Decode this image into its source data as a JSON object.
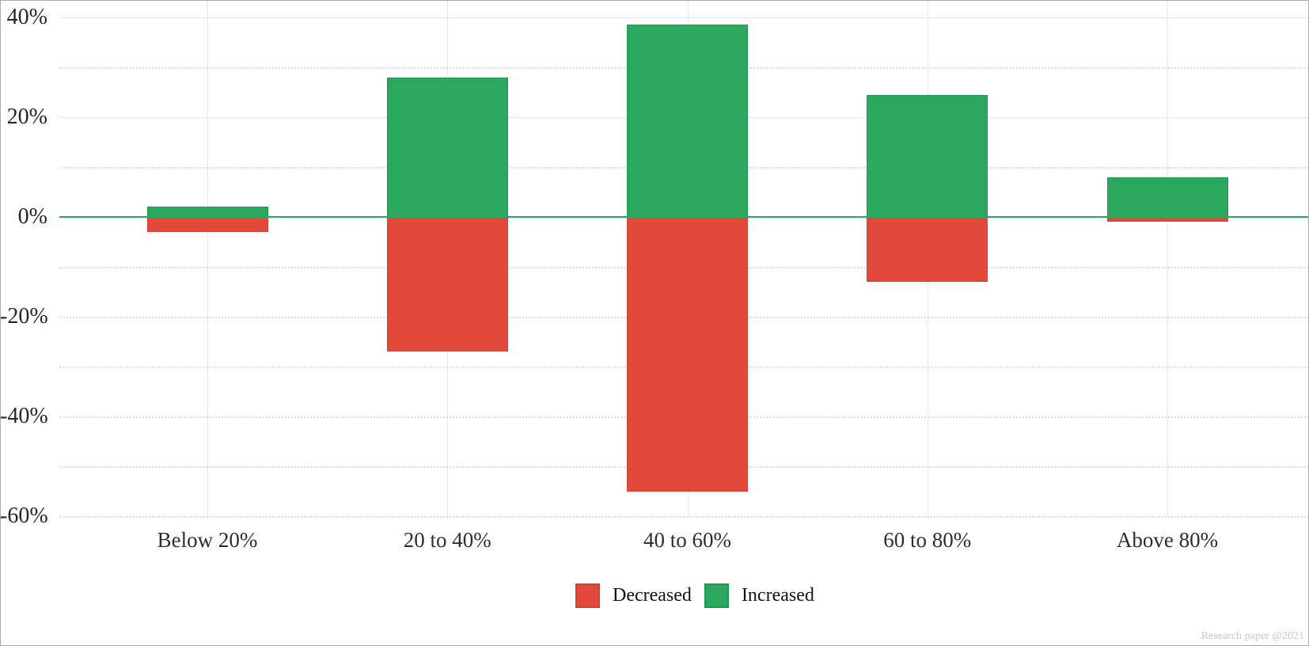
{
  "chart_data": {
    "type": "bar",
    "variant": "diverging-stacked",
    "title": "",
    "xlabel": "",
    "ylabel": "",
    "categories": [
      "Below 20%",
      "20 to 40%",
      "40 to 60%",
      "60 to 80%",
      "Above 80%"
    ],
    "series": [
      {
        "name": "Decreased",
        "color": "#e3493a",
        "border_color": "#d24234",
        "values": [
          -3,
          -27,
          -55,
          -13,
          -1
        ]
      },
      {
        "name": "Increased",
        "color": "#2aa85f",
        "border_color": "#219653",
        "values": [
          2,
          28,
          38.5,
          24.5,
          8
        ]
      }
    ],
    "ylim": [
      -60,
      44
    ],
    "yticks": {
      "labeled": [
        40,
        20,
        0,
        -20,
        -40,
        -60
      ],
      "labels": [
        "40%",
        "20%",
        "0%",
        "-20%",
        "-40%",
        "-60%"
      ],
      "minor": [
        30,
        10,
        -10,
        -30,
        -50
      ],
      "solid": [
        40,
        20
      ],
      "dotted": [
        30,
        10,
        -10,
        -20,
        -30,
        -40,
        -50,
        -60
      ]
    },
    "grid": true,
    "legend_position": "bottom",
    "zero_line_color": "#2aa85f"
  },
  "watermark": "Research paper @2021"
}
